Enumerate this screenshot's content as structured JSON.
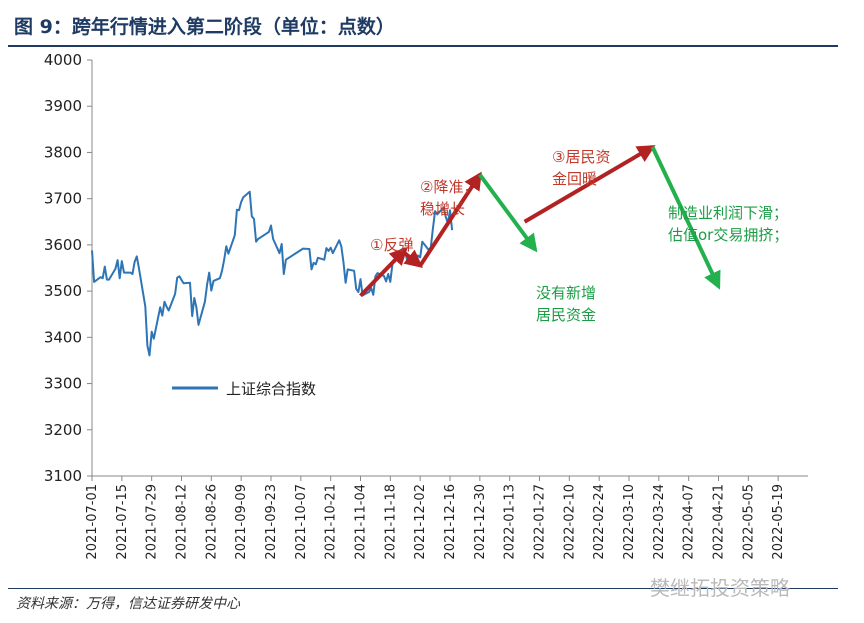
{
  "header": {
    "title": "图 9：跨年行情进入第二阶段（单位：点数）"
  },
  "footer": {
    "source": "资料来源：万得，信达证券研发中心",
    "watermark": "樊继拓投资策略"
  },
  "colors": {
    "line": "#2e75b6",
    "red_arrow": "#b22222",
    "green_arrow": "#22b14c",
    "title": "#1f3b64"
  },
  "chart_data": {
    "type": "line",
    "ylim": [
      3100,
      4000
    ],
    "y_ticks": [
      3100,
      3200,
      3300,
      3400,
      3500,
      3600,
      3700,
      3800,
      3900,
      4000
    ],
    "x_ticks": [
      "2021-07-01",
      "2021-07-15",
      "2021-07-29",
      "2021-08-12",
      "2021-08-26",
      "2021-09-09",
      "2021-09-23",
      "2021-10-07",
      "2021-10-21",
      "2021-11-04",
      "2021-11-18",
      "2021-12-02",
      "2021-12-16",
      "2021-12-30",
      "2022-01-13",
      "2022-01-27",
      "2022-02-10",
      "2022-02-24",
      "2022-03-10",
      "2022-03-24",
      "2022-04-07",
      "2022-04-21",
      "2022-05-05",
      "2022-05-19"
    ],
    "series": [
      {
        "name": "上证综合指数",
        "points": [
          [
            "2021-07-01",
            3588
          ],
          [
            "2021-07-02",
            3520
          ],
          [
            "2021-07-05",
            3530
          ],
          [
            "2021-07-06",
            3528
          ],
          [
            "2021-07-07",
            3553
          ],
          [
            "2021-07-08",
            3525
          ],
          [
            "2021-07-09",
            3525
          ],
          [
            "2021-07-12",
            3548
          ],
          [
            "2021-07-13",
            3567
          ],
          [
            "2021-07-14",
            3528
          ],
          [
            "2021-07-15",
            3565
          ],
          [
            "2021-07-16",
            3540
          ],
          [
            "2021-07-19",
            3540
          ],
          [
            "2021-07-20",
            3537
          ],
          [
            "2021-07-21",
            3563
          ],
          [
            "2021-07-22",
            3575
          ],
          [
            "2021-07-23",
            3550
          ],
          [
            "2021-07-26",
            3467
          ],
          [
            "2021-07-27",
            3382
          ],
          [
            "2021-07-28",
            3361
          ],
          [
            "2021-07-29",
            3412
          ],
          [
            "2021-07-30",
            3397
          ],
          [
            "2021-08-02",
            3465
          ],
          [
            "2021-08-03",
            3447
          ],
          [
            "2021-08-04",
            3477
          ],
          [
            "2021-08-05",
            3466
          ],
          [
            "2021-08-06",
            3458
          ],
          [
            "2021-08-09",
            3494
          ],
          [
            "2021-08-10",
            3529
          ],
          [
            "2021-08-11",
            3532
          ],
          [
            "2021-08-12",
            3524
          ],
          [
            "2021-08-13",
            3517
          ],
          [
            "2021-08-16",
            3518
          ],
          [
            "2021-08-17",
            3446
          ],
          [
            "2021-08-18",
            3485
          ],
          [
            "2021-08-19",
            3465
          ],
          [
            "2021-08-20",
            3427
          ],
          [
            "2021-08-23",
            3477
          ],
          [
            "2021-08-24",
            3514
          ],
          [
            "2021-08-25",
            3540
          ],
          [
            "2021-08-26",
            3501
          ],
          [
            "2021-08-27",
            3522
          ],
          [
            "2021-08-30",
            3528
          ],
          [
            "2021-08-31",
            3544
          ],
          [
            "2021-09-01",
            3567
          ],
          [
            "2021-09-02",
            3597
          ],
          [
            "2021-09-03",
            3581
          ],
          [
            "2021-09-06",
            3621
          ],
          [
            "2021-09-07",
            3676
          ],
          [
            "2021-09-08",
            3675
          ],
          [
            "2021-09-09",
            3693
          ],
          [
            "2021-09-10",
            3703
          ],
          [
            "2021-09-13",
            3715
          ],
          [
            "2021-09-14",
            3662
          ],
          [
            "2021-09-15",
            3656
          ],
          [
            "2021-09-16",
            3607
          ],
          [
            "2021-09-17",
            3613
          ],
          [
            "2021-09-22",
            3628
          ],
          [
            "2021-09-23",
            3642
          ],
          [
            "2021-09-24",
            3613
          ],
          [
            "2021-09-27",
            3582
          ],
          [
            "2021-09-28",
            3602
          ],
          [
            "2021-09-29",
            3537
          ],
          [
            "2021-09-30",
            3568
          ],
          [
            "2021-10-08",
            3592
          ],
          [
            "2021-10-11",
            3591
          ],
          [
            "2021-10-12",
            3547
          ],
          [
            "2021-10-13",
            3561
          ],
          [
            "2021-10-14",
            3558
          ],
          [
            "2021-10-15",
            3572
          ],
          [
            "2021-10-18",
            3568
          ],
          [
            "2021-10-19",
            3593
          ],
          [
            "2021-10-20",
            3587
          ],
          [
            "2021-10-21",
            3594
          ],
          [
            "2021-10-22",
            3582
          ],
          [
            "2021-10-25",
            3610
          ],
          [
            "2021-10-26",
            3597
          ],
          [
            "2021-10-27",
            3562
          ],
          [
            "2021-10-28",
            3518
          ],
          [
            "2021-10-29",
            3547
          ],
          [
            "2021-11-01",
            3544
          ],
          [
            "2021-11-02",
            3505
          ],
          [
            "2021-11-03",
            3498
          ],
          [
            "2021-11-04",
            3526
          ],
          [
            "2021-11-05",
            3491
          ],
          [
            "2021-11-08",
            3498
          ],
          [
            "2021-11-09",
            3507
          ],
          [
            "2021-11-10",
            3492
          ],
          [
            "2021-11-11",
            3532
          ],
          [
            "2021-11-12",
            3539
          ],
          [
            "2021-11-15",
            3533
          ],
          [
            "2021-11-16",
            3521
          ],
          [
            "2021-11-17",
            3537
          ],
          [
            "2021-11-18",
            3520
          ],
          [
            "2021-11-19",
            3560
          ],
          [
            "2021-11-22",
            3582
          ],
          [
            "2021-11-23",
            3589
          ],
          [
            "2021-11-24",
            3592
          ],
          [
            "2021-11-25",
            3584
          ],
          [
            "2021-11-26",
            3564
          ],
          [
            "2021-11-29",
            3562
          ],
          [
            "2021-11-30",
            3563
          ],
          [
            "2021-12-01",
            3577
          ],
          [
            "2021-12-02",
            3573
          ],
          [
            "2021-12-03",
            3607
          ],
          [
            "2021-12-06",
            3589
          ],
          [
            "2021-12-07",
            3595
          ],
          [
            "2021-12-08",
            3637
          ],
          [
            "2021-12-09",
            3673
          ],
          [
            "2021-12-10",
            3666
          ],
          [
            "2021-12-13",
            3681
          ],
          [
            "2021-12-14",
            3661
          ],
          [
            "2021-12-15",
            3647
          ],
          [
            "2021-12-16",
            3675
          ],
          [
            "2021-12-17",
            3632
          ]
        ]
      }
    ],
    "annotations": [
      {
        "label_lines": [
          "①反弹"
        ],
        "color": "red"
      },
      {
        "label_lines": [
          "②降准，",
          "稳增长"
        ],
        "color": "red"
      },
      {
        "label_lines": [
          "③居民资",
          "金回暖"
        ],
        "color": "red"
      },
      {
        "label_lines": [
          "没有新增",
          "居民资金"
        ],
        "color": "green"
      },
      {
        "label_lines": [
          "制造业利润下滑；",
          "估值or交易拥挤；"
        ],
        "color": "green"
      }
    ],
    "arrows": [
      {
        "from": [
          "2021-11-04",
          3490
        ],
        "to": [
          "2021-11-25",
          3590
        ],
        "color": "red"
      },
      {
        "from": [
          "2021-11-24",
          3585
        ],
        "to": [
          "2021-12-02",
          3555
        ],
        "color": "red"
      },
      {
        "from": [
          "2021-12-02",
          3555
        ],
        "to": [
          "2021-12-30",
          3752
        ],
        "color": "red"
      },
      {
        "from": [
          "2021-12-30",
          3752
        ],
        "to": [
          "2022-01-25",
          3590
        ],
        "color": "green"
      },
      {
        "from": [
          "2022-01-20",
          3650
        ],
        "to": [
          "2022-03-21",
          3812
        ],
        "color": "red"
      },
      {
        "from": [
          "2022-03-21",
          3812
        ],
        "to": [
          "2022-04-21",
          3510
        ],
        "color": "green"
      }
    ]
  }
}
